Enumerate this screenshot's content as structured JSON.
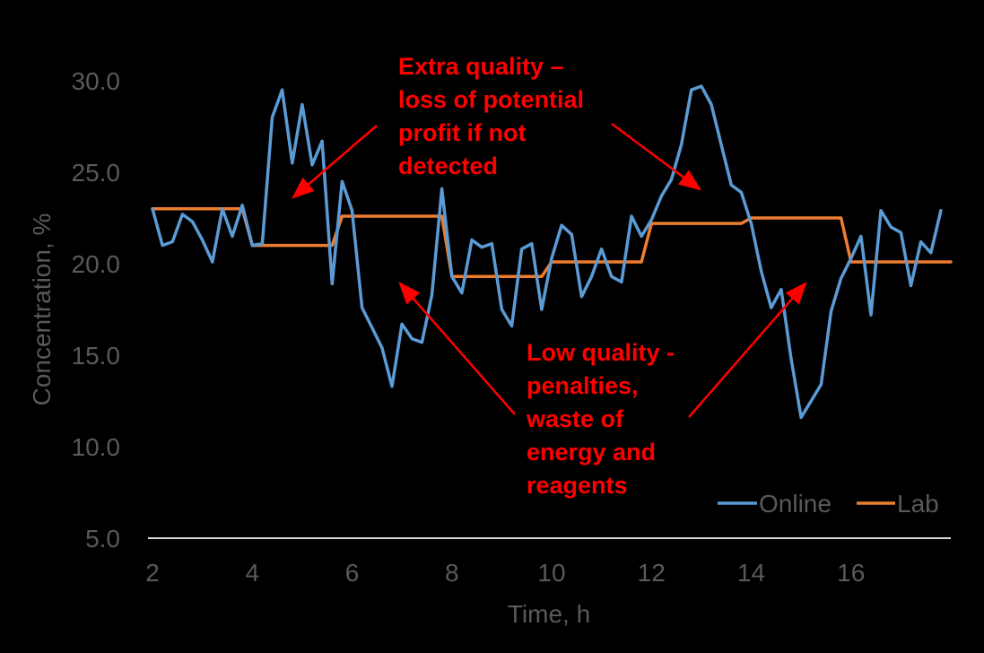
{
  "chart_data": {
    "type": "line",
    "title": "",
    "xlabel": "Time, h",
    "ylabel": "Concentration, %",
    "xlim": [
      2,
      18
    ],
    "ylim": [
      5,
      30
    ],
    "x_ticks": [
      2,
      4,
      6,
      8,
      10,
      12,
      14,
      16
    ],
    "x_tick_labels": [
      "2",
      "4",
      "6",
      "8",
      "10",
      "12",
      "14",
      "16"
    ],
    "y_ticks": [
      5,
      10,
      15,
      20,
      25,
      30
    ],
    "y_tick_labels": [
      "5.0",
      "10.0",
      "15.0",
      "20.0",
      "25.0",
      "30.0"
    ],
    "grid": false,
    "legend_position": "bottom-right",
    "colors": {
      "Online": "#5B9BD5",
      "Lab": "#ED7D31",
      "annotation": "#FF0000",
      "text": "#595959",
      "axis": "#D9D9D9",
      "background": "#000000"
    },
    "series": [
      {
        "name": "Online",
        "x": [
          2.0,
          2.2,
          2.4,
          2.6,
          2.8,
          3.0,
          3.2,
          3.4,
          3.6,
          3.8,
          4.0,
          4.2,
          4.4,
          4.6,
          4.8,
          5.0,
          5.2,
          5.4,
          5.6,
          5.8,
          6.0,
          6.2,
          6.4,
          6.6,
          6.8,
          7.0,
          7.2,
          7.4,
          7.6,
          7.8,
          8.0,
          8.2,
          8.4,
          8.6,
          8.8,
          9.0,
          9.2,
          9.4,
          9.6,
          9.8,
          10.0,
          10.2,
          10.4,
          10.6,
          10.8,
          11.0,
          11.2,
          11.4,
          11.6,
          11.8,
          12.0,
          12.2,
          12.4,
          12.6,
          12.8,
          13.0,
          13.2,
          13.4,
          13.6,
          13.8,
          14.0,
          14.2,
          14.4,
          14.6,
          14.8,
          15.0,
          15.2,
          15.4,
          15.6,
          15.8,
          16.0,
          16.2,
          16.4,
          16.6,
          16.8,
          17.0,
          17.2,
          17.4,
          17.6,
          17.8
        ],
        "values": [
          23.0,
          21.0,
          21.2,
          22.7,
          22.3,
          21.3,
          20.1,
          23.0,
          21.5,
          23.2,
          21.0,
          21.1,
          28.0,
          29.5,
          25.5,
          28.7,
          25.4,
          26.7,
          18.9,
          24.5,
          22.9,
          17.6,
          16.5,
          15.4,
          13.3,
          16.7,
          15.9,
          15.7,
          18.3,
          24.1,
          19.3,
          18.4,
          21.3,
          20.9,
          21.1,
          17.5,
          16.6,
          20.8,
          21.1,
          17.5,
          20.3,
          22.1,
          21.6,
          18.2,
          19.3,
          20.8,
          19.3,
          19.0,
          22.6,
          21.5,
          22.4,
          23.7,
          24.6,
          26.5,
          29.5,
          29.7,
          28.7,
          26.5,
          24.3,
          23.9,
          22.2,
          19.6,
          17.6,
          18.6,
          14.8,
          11.6,
          12.5,
          13.4,
          17.4,
          19.2,
          20.3,
          21.5,
          17.2,
          22.9,
          22.0,
          21.7,
          18.8,
          21.2,
          20.6,
          22.9
        ]
      },
      {
        "name": "Lab",
        "x": [
          2.0,
          3.8,
          4.0,
          5.6,
          5.8,
          7.8,
          8.0,
          9.8,
          10.0,
          11.8,
          12.0,
          13.8,
          14.0,
          15.8,
          16.0,
          18.0
        ],
        "values": [
          23.0,
          23.0,
          21.0,
          21.0,
          22.6,
          22.6,
          19.3,
          19.3,
          20.1,
          20.1,
          22.2,
          22.2,
          22.5,
          22.5,
          20.1,
          20.1
        ]
      }
    ],
    "annotations": [
      {
        "lines": [
          "Extra quality –",
          "loss of potential",
          "profit if not",
          "detected"
        ]
      },
      {
        "lines": [
          "Low quality -",
          "penalties,",
          "waste of",
          "energy and",
          "reagents"
        ]
      }
    ]
  }
}
